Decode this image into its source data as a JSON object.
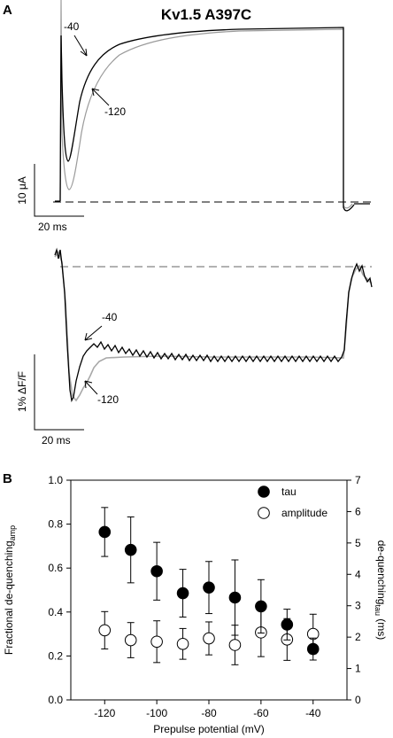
{
  "panel_a": {
    "letter": "A",
    "title": "Kv1.5 A397C",
    "current": {
      "label_minus40": "-40",
      "label_minus120": "-120",
      "scale_y": "10 μA",
      "scale_x": "20 ms"
    },
    "fluorescence": {
      "label_minus40": "-40",
      "label_minus120": "-120",
      "scale_y": "1% ΔF/F",
      "scale_x": "20 ms"
    }
  },
  "panel_b": {
    "letter": "B"
  },
  "chart_data": {
    "type": "scatter",
    "x": [
      -120,
      -110,
      -100,
      -90,
      -80,
      -70,
      -60,
      -50,
      -40
    ],
    "xlabel": "Prepulse potential (mV)",
    "xlim": [
      -133,
      -27
    ],
    "xticks": [
      -120,
      -100,
      -80,
      -60,
      -40
    ],
    "ylabel_left": "Fractional de-quenching",
    "ylabel_left_sub": "amp",
    "ylim_left": [
      0.0,
      1.0
    ],
    "yticks_left": [
      "0.0",
      "0.2",
      "0.4",
      "0.6",
      "0.8",
      "1.0"
    ],
    "ylabel_right": "de-quenching",
    "ylabel_right_sub": "tau",
    "ylabel_right_unit": " (ms)",
    "ylim_right": [
      0,
      7
    ],
    "yticks_right": [
      "0",
      "1",
      "2",
      "3",
      "4",
      "5",
      "6",
      "7"
    ],
    "legend_position": "top-right",
    "series": [
      {
        "name": "tau",
        "marker": "filled-circle",
        "axis": "right",
        "values": [
          5.35,
          4.78,
          4.1,
          3.4,
          3.58,
          3.26,
          2.98,
          2.4,
          1.62
        ],
        "errors": [
          0.78,
          1.05,
          0.92,
          0.76,
          0.83,
          1.2,
          0.85,
          0.49,
          0.35
        ]
      },
      {
        "name": "amplitude",
        "marker": "open-circle",
        "axis": "left",
        "values": [
          0.317,
          0.272,
          0.265,
          0.255,
          0.28,
          0.25,
          0.307,
          0.275,
          0.3
        ],
        "errors": [
          0.085,
          0.08,
          0.095,
          0.07,
          0.075,
          0.09,
          0.11,
          0.095,
          0.09
        ]
      }
    ]
  }
}
